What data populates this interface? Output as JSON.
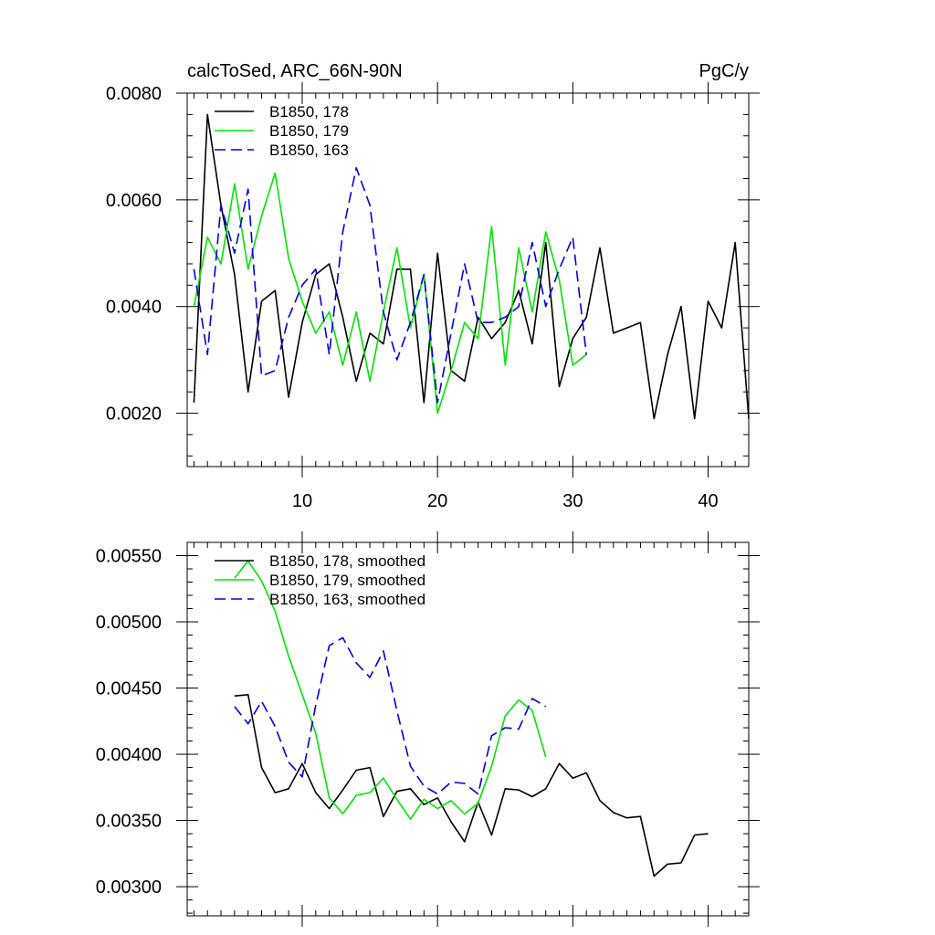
{
  "chart_data": [
    {
      "type": "line",
      "title": "calcToSed, ARC_66N-90N",
      "units": "PgC/y",
      "xlabel": "",
      "ylabel": "",
      "xlim": [
        1.5,
        43
      ],
      "ylim": [
        0.001,
        0.008
      ],
      "x_ticks": [
        10,
        20,
        30,
        40
      ],
      "x_tick_labels": [
        "10",
        "20",
        "30",
        "40"
      ],
      "y_ticks": [
        0.002,
        0.004,
        0.006,
        0.008
      ],
      "y_tick_labels": [
        "0.0020",
        "0.0040",
        "0.0060",
        "0.0080"
      ],
      "legend_position": "top-left",
      "series": [
        {
          "name": "B1850, 178",
          "color": "#000000",
          "dash": "solid",
          "x": [
            2,
            3,
            4,
            5,
            6,
            7,
            8,
            9,
            10,
            11,
            12,
            13,
            14,
            15,
            16,
            17,
            18,
            19,
            20,
            21,
            22,
            23,
            24,
            25,
            26,
            27,
            28,
            29,
            30,
            31,
            32,
            33,
            34,
            35,
            36,
            37,
            38,
            39,
            40,
            41,
            42,
            43
          ],
          "values": [
            0.0022,
            0.0076,
            0.0059,
            0.0046,
            0.0024,
            0.0041,
            0.0043,
            0.0023,
            0.0037,
            0.0046,
            0.0048,
            0.0038,
            0.0026,
            0.0035,
            0.0033,
            0.0047,
            0.0047,
            0.0022,
            0.005,
            0.0028,
            0.0026,
            0.0038,
            0.0034,
            0.0037,
            0.0043,
            0.0033,
            0.0052,
            0.0025,
            0.0034,
            0.0038,
            0.0051,
            0.0035,
            0.0036,
            0.0037,
            0.0019,
            0.0031,
            0.004,
            0.0019,
            0.0041,
            0.0036,
            0.0052,
            0.0019
          ]
        },
        {
          "name": "B1850, 179",
          "color": "#00e600",
          "dash": "solid",
          "x": [
            2,
            3,
            4,
            5,
            6,
            7,
            8,
            9,
            10,
            11,
            12,
            13,
            14,
            15,
            16,
            17,
            18,
            19,
            20,
            21,
            22,
            23,
            24,
            25,
            26,
            27,
            28,
            29,
            30,
            31
          ],
          "values": [
            0.004,
            0.0053,
            0.0048,
            0.0063,
            0.0047,
            0.0057,
            0.0065,
            0.0049,
            0.0041,
            0.0035,
            0.0039,
            0.0029,
            0.0039,
            0.0026,
            0.0039,
            0.0051,
            0.0036,
            0.0046,
            0.002,
            0.0028,
            0.0037,
            0.0034,
            0.0055,
            0.0029,
            0.0051,
            0.0039,
            0.0054,
            0.0045,
            0.0029,
            0.0031
          ]
        },
        {
          "name": "B1850, 163",
          "color": "#0000e6",
          "dash": "dashed",
          "x": [
            2,
            3,
            4,
            5,
            6,
            7,
            8,
            9,
            10,
            11,
            12,
            13,
            14,
            15,
            16,
            17,
            18,
            19,
            20,
            21,
            22,
            23,
            24,
            25,
            26,
            27,
            28,
            29,
            30,
            31
          ],
          "values": [
            0.0047,
            0.0031,
            0.0059,
            0.005,
            0.0062,
            0.0027,
            0.0028,
            0.0038,
            0.0044,
            0.0047,
            0.0031,
            0.0054,
            0.0066,
            0.0059,
            0.0039,
            0.003,
            0.0037,
            0.0046,
            0.0022,
            0.0035,
            0.0048,
            0.0037,
            0.0037,
            0.0038,
            0.004,
            0.0052,
            0.004,
            0.0047,
            0.0053,
            0.0031
          ]
        }
      ]
    },
    {
      "type": "line",
      "title": "",
      "xlabel": "",
      "ylabel": "",
      "xlim": [
        1.5,
        43
      ],
      "ylim": [
        0.00278,
        0.0056
      ],
      "x_ticks": [
        10,
        20,
        30,
        40
      ],
      "y_ticks": [
        0.003,
        0.0035,
        0.004,
        0.0045,
        0.005,
        0.0055
      ],
      "y_tick_labels": [
        "0.00300",
        "0.00350",
        "0.00400",
        "0.00450",
        "0.00500",
        "0.00550"
      ],
      "legend_position": "top-left",
      "series": [
        {
          "name": "B1850, 178, smoothed",
          "color": "#000000",
          "dash": "solid",
          "x": [
            5,
            6,
            7,
            8,
            9,
            10,
            11,
            12,
            13,
            14,
            15,
            16,
            17,
            18,
            19,
            20,
            21,
            22,
            23,
            24,
            25,
            26,
            27,
            28,
            29,
            30,
            31,
            32,
            33,
            34,
            35,
            36,
            37,
            38,
            39,
            40
          ],
          "values": [
            0.00444,
            0.00445,
            0.0039,
            0.00371,
            0.00374,
            0.00393,
            0.00371,
            0.00359,
            0.00373,
            0.00388,
            0.0039,
            0.00353,
            0.00372,
            0.00374,
            0.00362,
            0.00367,
            0.00349,
            0.00334,
            0.00364,
            0.00339,
            0.00374,
            0.00373,
            0.00368,
            0.00374,
            0.00393,
            0.00382,
            0.00386,
            0.00365,
            0.00356,
            0.00352,
            0.00353,
            0.00308,
            0.00317,
            0.00318,
            0.00339,
            0.0034
          ]
        },
        {
          "name": "B1850, 179, smoothed",
          "color": "#00e600",
          "dash": "solid",
          "x": [
            5,
            6,
            7,
            8,
            9,
            10,
            11,
            12,
            13,
            14,
            15,
            16,
            17,
            18,
            19,
            20,
            21,
            22,
            23,
            24,
            25,
            26,
            27,
            28
          ],
          "values": [
            0.00533,
            0.00546,
            0.00531,
            0.00508,
            0.00474,
            0.00445,
            0.00416,
            0.00367,
            0.00355,
            0.00369,
            0.00371,
            0.00382,
            0.00366,
            0.00351,
            0.00366,
            0.00359,
            0.00365,
            0.00355,
            0.00363,
            0.00391,
            0.00429,
            0.00441,
            0.00433,
            0.00398
          ]
        },
        {
          "name": "B1850, 163, smoothed",
          "color": "#0000e6",
          "dash": "dashed",
          "x": [
            5,
            6,
            7,
            8,
            9,
            10,
            11,
            12,
            13,
            14,
            15,
            16,
            17,
            18,
            19,
            20,
            21,
            22,
            23,
            24,
            25,
            26,
            27,
            28
          ],
          "values": [
            0.00436,
            0.00423,
            0.0044,
            0.00421,
            0.00394,
            0.00383,
            0.00437,
            0.00482,
            0.00488,
            0.00469,
            0.00458,
            0.00478,
            0.00433,
            0.00391,
            0.00376,
            0.0037,
            0.00379,
            0.00378,
            0.0037,
            0.00414,
            0.0042,
            0.00419,
            0.00442,
            0.00436
          ]
        }
      ]
    }
  ]
}
